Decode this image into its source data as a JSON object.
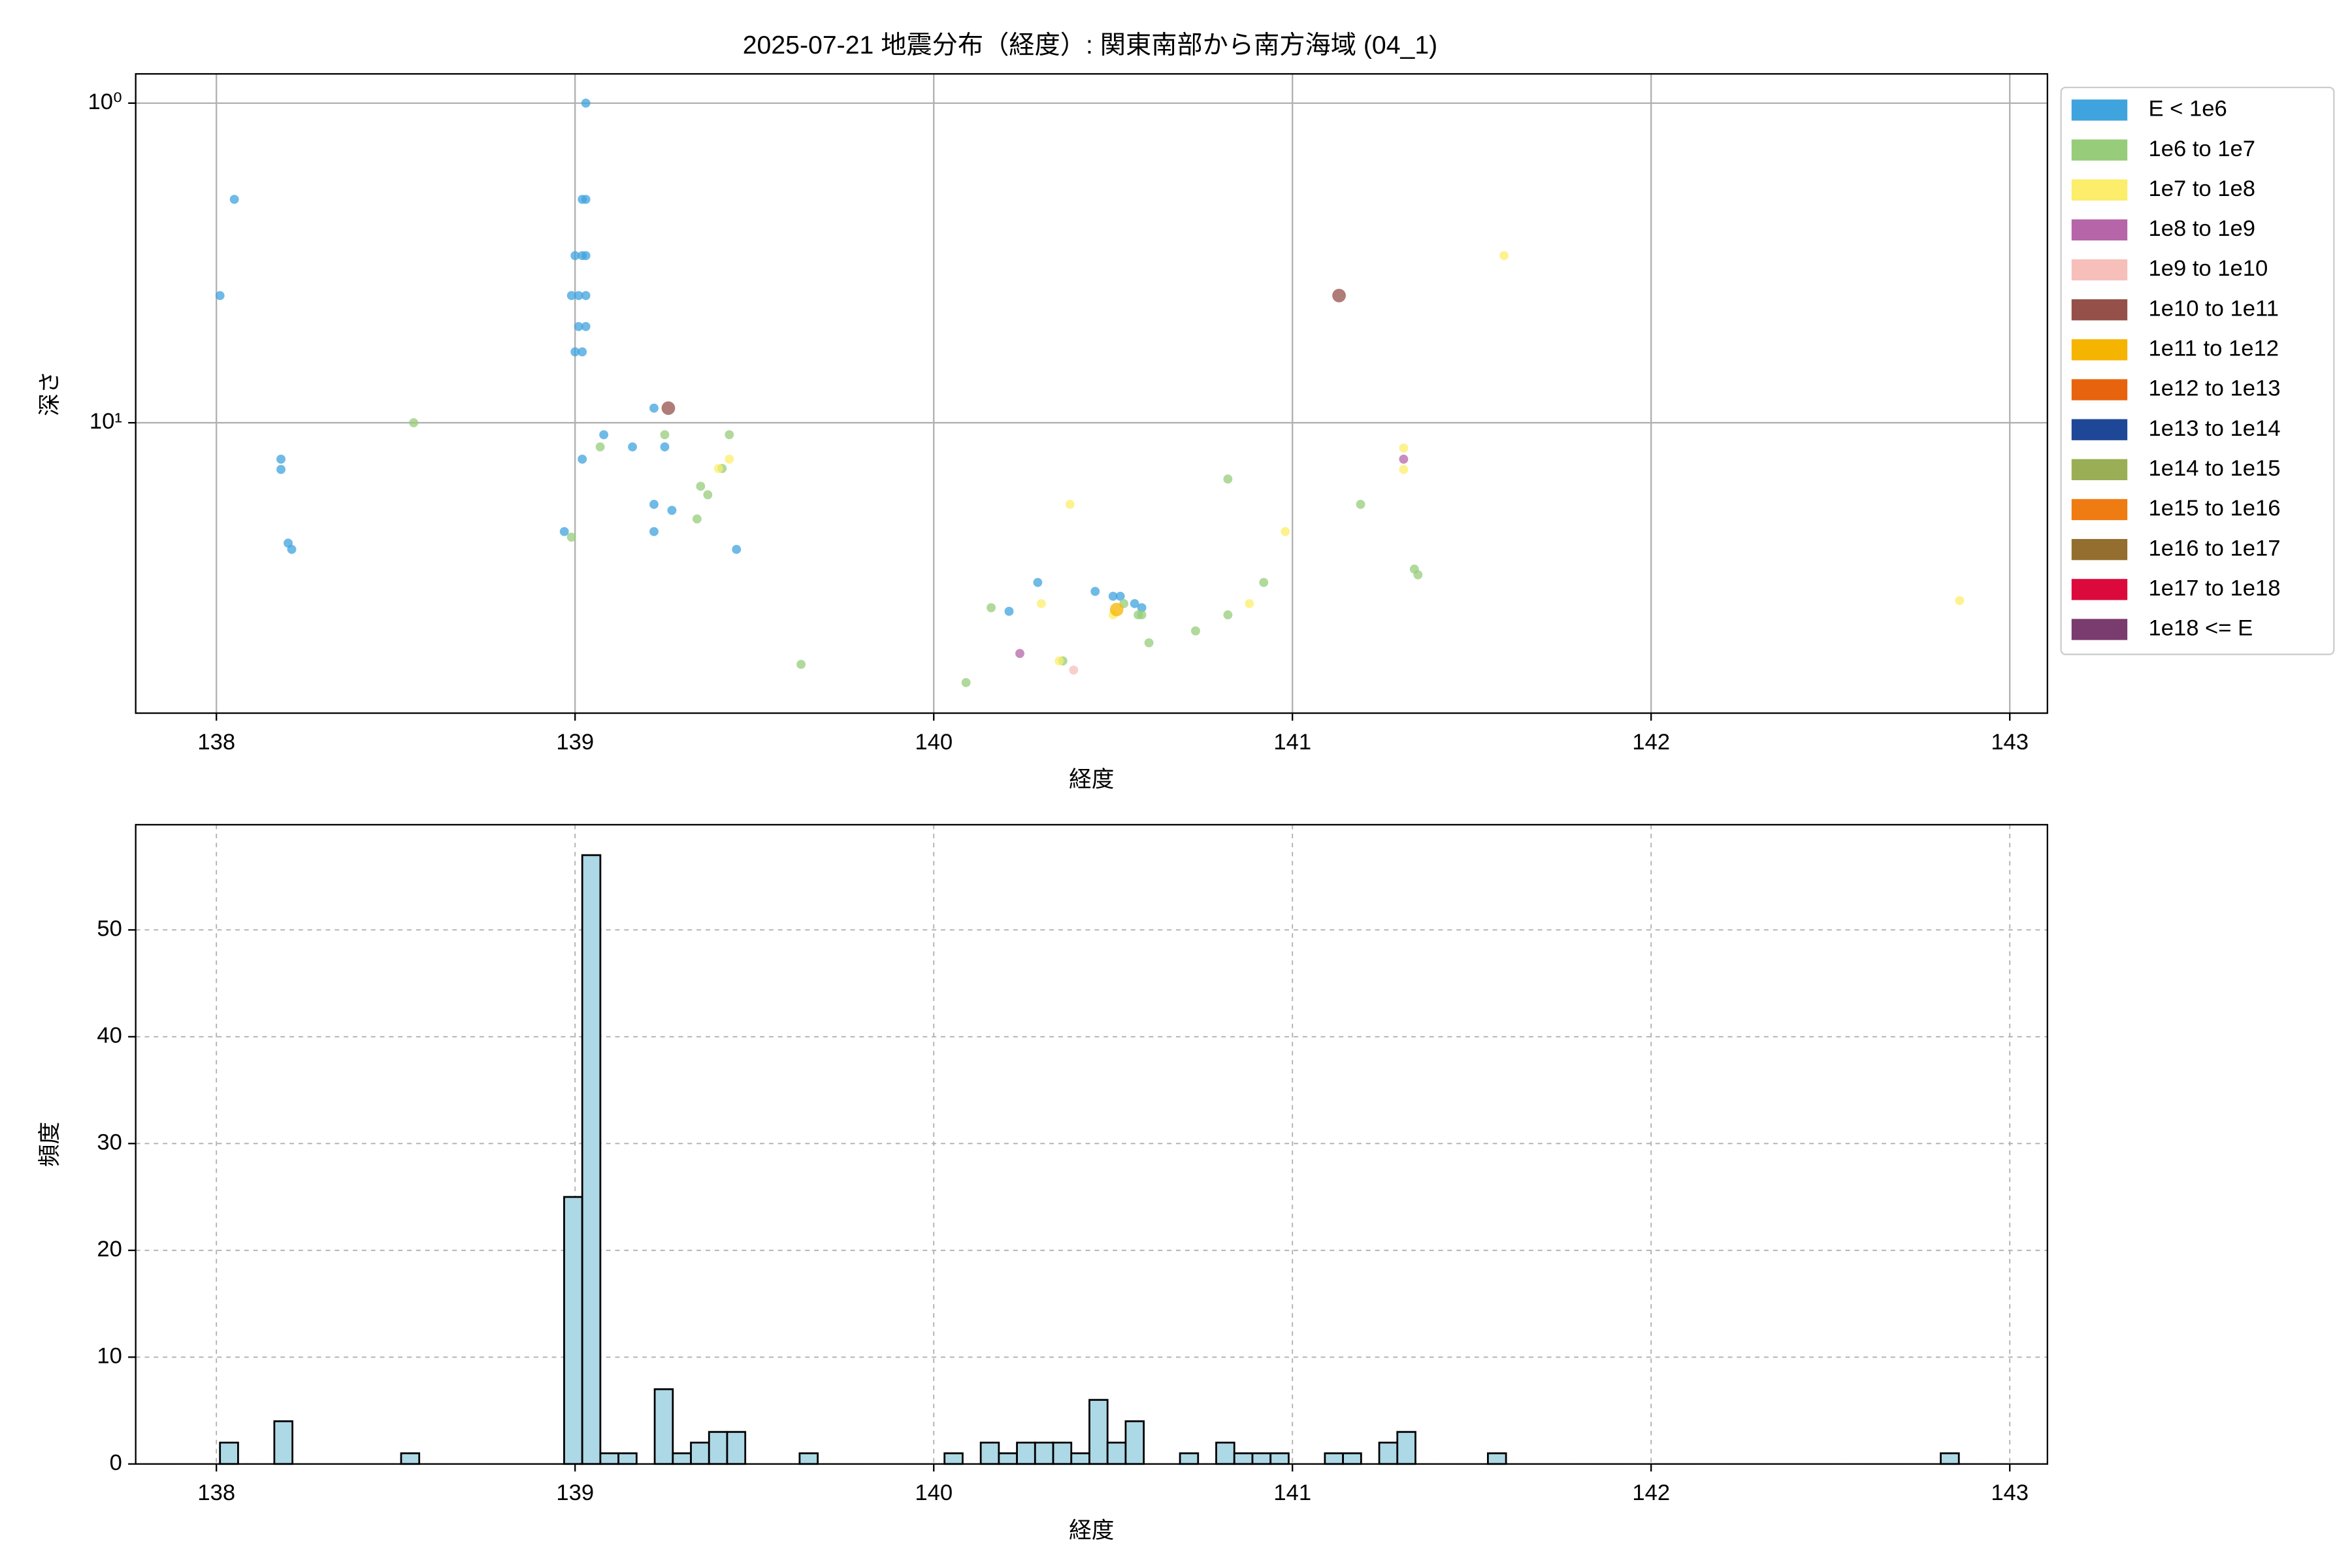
{
  "chart_data": [
    {
      "type": "scatter",
      "title": "2025-07-21 地震分布（経度）: 関東南部から南方海域 (04_1)",
      "xlabel": "経度",
      "ylabel": "深さ",
      "xlim": [
        137.775,
        143.105
      ],
      "xticks": [
        138,
        139,
        140,
        141,
        142,
        143
      ],
      "ylim": [
        0.81,
        81
      ],
      "y_log": true,
      "y_inverted": true,
      "yticks": [
        {
          "value": 1,
          "label": "10⁰"
        },
        {
          "value": 10,
          "label": "10¹"
        }
      ],
      "grid": true,
      "legend": "outside upper right",
      "series": [
        {
          "name": "E < 1e6",
          "color": "#3fa3dd",
          "x": [
            138.01,
            138.05,
            138.18,
            138.18,
            138.2,
            138.21,
            139.03,
            139.02,
            139.03,
            139.0,
            139.02,
            139.03,
            138.99,
            139.01,
            139.03,
            139.01,
            139.03,
            139.0,
            139.02,
            139.02,
            138.97,
            139.08,
            139.16,
            139.22,
            139.22,
            139.22,
            139.25,
            139.27,
            139.45,
            140.29,
            140.21,
            140.45,
            140.5,
            140.52,
            140.56,
            140.58
          ],
          "values": [
            4.0,
            2.0,
            13,
            14,
            23.8,
            24.9,
            1.0,
            2.0,
            2.0,
            3.0,
            3.0,
            3.0,
            4.0,
            4.0,
            4.0,
            5.0,
            5.0,
            6.0,
            6.0,
            13,
            21.9,
            10.9,
            11.9,
            9.0,
            18,
            21.9,
            11.9,
            18.8,
            24.9,
            31.6,
            38.9,
            33.7,
            34.9,
            34.9,
            36.8,
            37.9
          ]
        },
        {
          "name": "1e6 to 1e7",
          "color": "#96cc7a",
          "x": [
            138.55,
            138.99,
            139.07,
            139.25,
            139.43,
            139.41,
            139.35,
            139.37,
            139.34,
            139.63,
            140.09,
            140.16,
            140.36,
            140.53,
            140.57,
            140.58,
            140.6,
            140.73,
            140.82,
            140.82,
            140.92,
            141.19,
            141.34,
            141.35
          ],
          "values": [
            10,
            22.8,
            11.9,
            10.9,
            10.9,
            13.9,
            15.8,
            16.8,
            20,
            57,
            65,
            37.9,
            55.6,
            36.8,
            39.9,
            39.9,
            48.8,
            44.8,
            39.9,
            15,
            31.6,
            18,
            28.7,
            29.9
          ]
        },
        {
          "name": "1e7 to 1e8",
          "color": "#fced6a",
          "x": [
            141.59,
            141.31,
            141.31,
            139.43,
            139.4,
            140.38,
            140.98,
            140.3,
            140.5,
            140.88,
            140.35,
            142.86
          ],
          "values": [
            3,
            12,
            14,
            13,
            13.9,
            18,
            21.9,
            36.8,
            39.9,
            36.8,
            55.6,
            36
          ]
        },
        {
          "name": "1e8 to 1e9",
          "color": "#b565a8",
          "x": [
            140.24,
            141.31
          ],
          "values": [
            52.7,
            13
          ]
        },
        {
          "name": "1e9 to 1e10",
          "color": "#f6bfba",
          "x": [
            140.39
          ],
          "values": [
            59.4
          ]
        },
        {
          "name": "1e10 to 1e11",
          "color": "#955049",
          "x": [
            141.13,
            139.26
          ],
          "values": [
            4.0,
            9.0
          ]
        },
        {
          "name": "1e11 to 1e12",
          "color": "#f5b400",
          "x": [
            140.51
          ],
          "values": [
            38.4
          ]
        },
        {
          "name": "1e12 to 1e13",
          "color": "#e8630d",
          "x": [],
          "values": []
        },
        {
          "name": "1e13 to 1e14",
          "color": "#1e4897",
          "x": [],
          "values": []
        },
        {
          "name": "1e14 to 1e15",
          "color": "#9aaf55",
          "x": [],
          "values": []
        },
        {
          "name": "1e15 to 1e16",
          "color": "#ef7c12",
          "x": [],
          "values": []
        },
        {
          "name": "1e16 to 1e17",
          "color": "#946e2f",
          "x": [],
          "values": []
        },
        {
          "name": "1e17 to 1e18",
          "color": "#dc0a3c",
          "x": [],
          "values": []
        },
        {
          "name": "1e18 <= E",
          "color": "#7a3b6e",
          "x": [],
          "values": []
        }
      ]
    },
    {
      "type": "histogram",
      "xlabel": "経度",
      "ylabel": "頻度",
      "xlim": [
        137.775,
        143.105
      ],
      "xticks": [
        138,
        139,
        140,
        141,
        142,
        143
      ],
      "ylim": [
        0,
        59.85
      ],
      "yticks": [
        0,
        10,
        20,
        30,
        40,
        50
      ],
      "grid": true,
      "grid_style": "dashed",
      "color": "#add8e6",
      "edgecolor": "#000000",
      "bins": [
        138.01,
        138.0605,
        138.111,
        138.1615,
        138.212,
        138.2625,
        138.313,
        138.3635,
        138.414,
        138.4645,
        138.515,
        138.5655,
        138.616,
        138.6665,
        138.717,
        138.7675,
        138.818,
        138.8685,
        138.919,
        138.9695,
        139.02,
        139.0705,
        139.121,
        139.1715,
        139.222,
        139.2725,
        139.323,
        139.3735,
        139.424,
        139.4745,
        139.525,
        139.5755,
        139.626,
        139.6765,
        139.727,
        139.7775,
        139.828,
        139.8785,
        139.929,
        139.9795,
        140.03,
        140.0805,
        140.131,
        140.1815,
        140.232,
        140.2825,
        140.333,
        140.3835,
        140.434,
        140.4845,
        140.535,
        140.5855,
        140.636,
        140.6865,
        140.737,
        140.7875,
        140.838,
        140.8885,
        140.939,
        140.9895,
        141.04,
        141.0905,
        141.141,
        141.1915,
        141.242,
        141.2925,
        141.343,
        141.3935,
        141.444,
        141.4945,
        141.545,
        141.5955,
        141.646,
        141.6965,
        141.747,
        141.7975,
        141.848,
        141.8985,
        141.949,
        141.9995,
        142.05,
        142.1005,
        142.151,
        142.2015,
        142.252,
        142.3025,
        142.353,
        142.4035,
        142.454,
        142.5045,
        142.555,
        142.6055,
        142.656,
        142.7065,
        142.757,
        142.8075,
        142.858
      ],
      "counts": [
        2,
        0,
        0,
        4,
        0,
        0,
        0,
        0,
        0,
        0,
        1,
        0,
        0,
        0,
        0,
        0,
        0,
        0,
        0,
        25,
        57,
        1,
        1,
        0,
        7,
        1,
        2,
        3,
        3,
        0,
        0,
        0,
        1,
        0,
        0,
        0,
        0,
        0,
        0,
        0,
        1,
        0,
        2,
        1,
        2,
        2,
        2,
        1,
        6,
        2,
        4,
        0,
        0,
        1,
        0,
        2,
        1,
        1,
        1,
        0,
        0,
        1,
        1,
        0,
        2,
        3,
        0,
        0,
        0,
        0,
        1,
        0,
        0,
        0,
        0,
        0,
        0,
        0,
        0,
        0,
        0,
        0,
        0,
        0,
        0,
        0,
        0,
        0,
        0,
        0,
        0,
        0,
        0,
        0,
        0,
        1
      ]
    }
  ]
}
